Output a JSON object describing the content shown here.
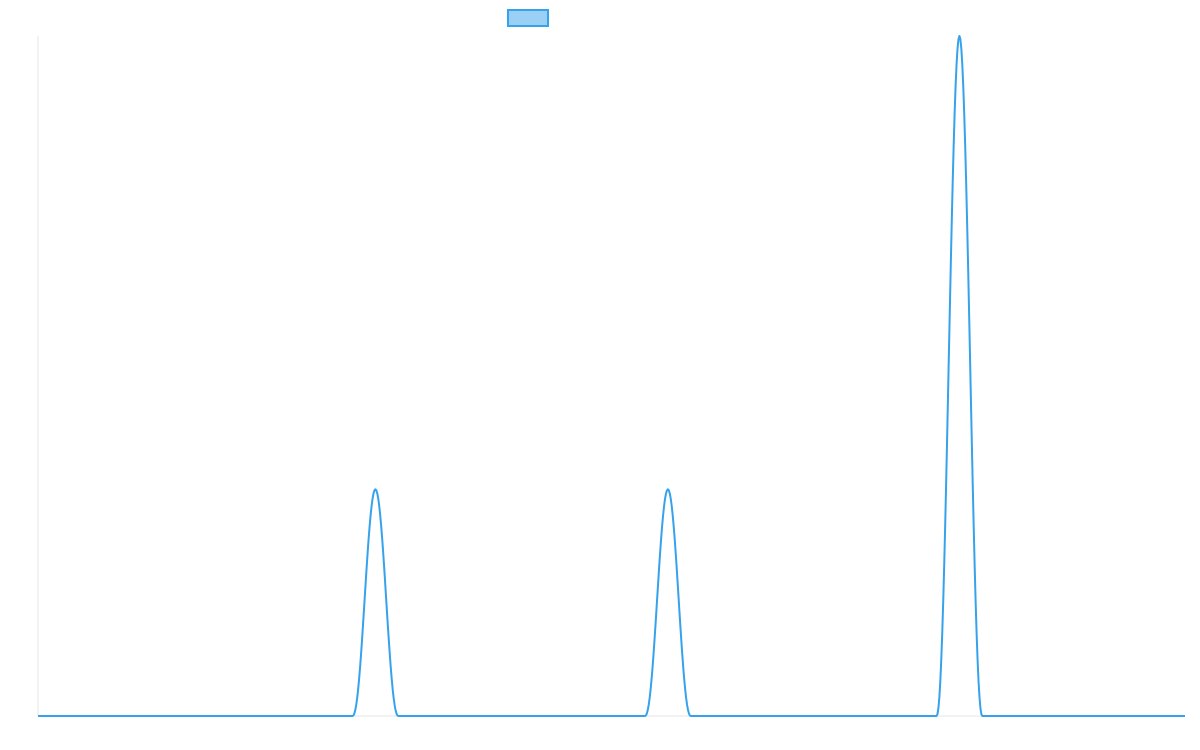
{
  "chart_data": {
    "type": "line",
    "title": "",
    "xlabel": "",
    "ylabel": "",
    "x_range": [
      0,
      1200
    ],
    "ylim": [
      0,
      1.5
    ],
    "grid": false,
    "legend": {
      "placement": "top-center",
      "swatch_fill": "#9ad0f5",
      "swatch_stroke": "#36a2eb",
      "label": ""
    },
    "series": [
      {
        "color": "#36a2eb",
        "baseline": 0,
        "peaks": [
          {
            "x": 353,
            "height": 0.5,
            "width": 24
          },
          {
            "x": 659,
            "height": 0.5,
            "width": 24
          },
          {
            "x": 964,
            "height": 1.5,
            "width": 24
          }
        ]
      }
    ]
  }
}
